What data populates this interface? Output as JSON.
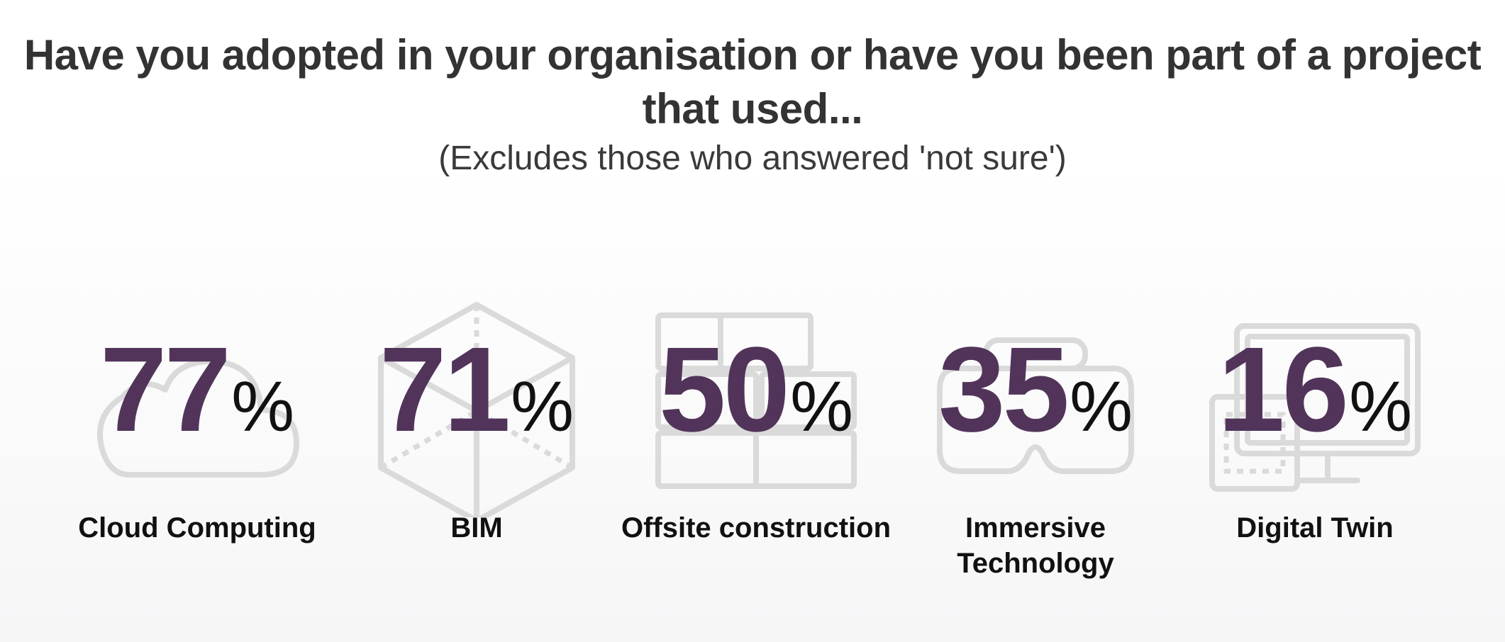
{
  "header": {
    "title": "Have you adopted in your organisation or have you been part of a project that used...",
    "subtitle": "(Excludes those who answered 'not sure')"
  },
  "chart_data": {
    "type": "table",
    "title": "Have you adopted in your organisation or have you been part of a project that used...",
    "subtitle": "(Excludes those who answered 'not sure')",
    "categories": [
      "Cloud Computing",
      "BIM",
      "Offsite construction",
      "Immersive Technology",
      "Digital Twin"
    ],
    "values": [
      77,
      71,
      50,
      35,
      16
    ],
    "unit": "%",
    "value_color": "#52345a",
    "items": [
      {
        "label": "Cloud Computing",
        "value": "77",
        "unit": "%",
        "icon": "cloud-icon"
      },
      {
        "label": "BIM",
        "value": "71",
        "unit": "%",
        "icon": "cube-icon"
      },
      {
        "label": "Offsite construction",
        "value": "50",
        "unit": "%",
        "icon": "bricks-icon"
      },
      {
        "label": "Immersive Technology",
        "value": "35",
        "unit": "%",
        "icon": "vr-headset-icon"
      },
      {
        "label": "Digital Twin",
        "value": "16",
        "unit": "%",
        "icon": "monitor-blueprint-icon"
      }
    ]
  }
}
